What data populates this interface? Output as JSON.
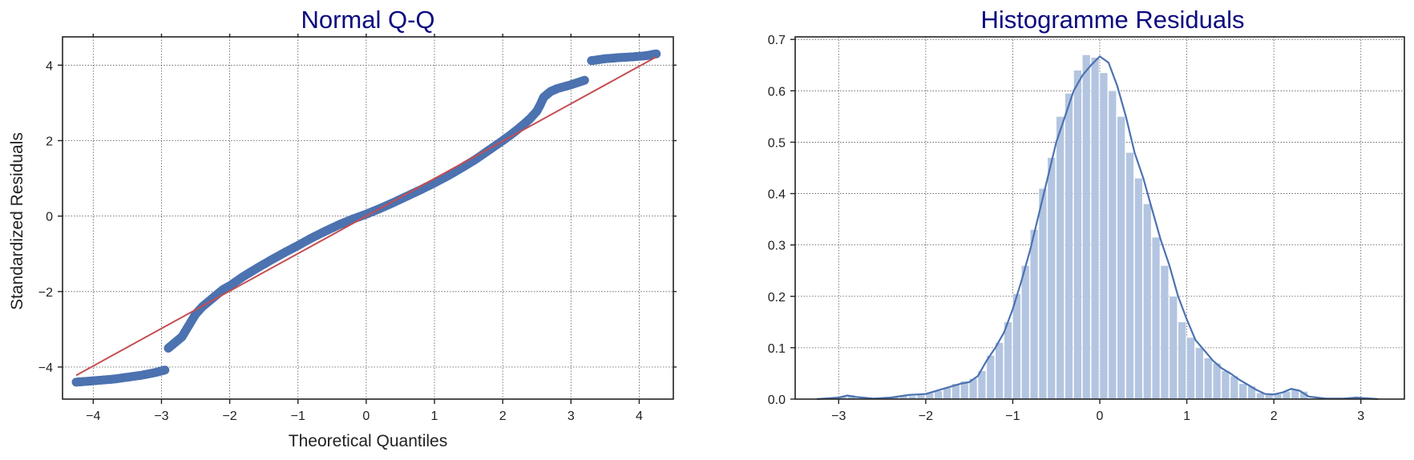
{
  "colors": {
    "points": "#4c72b0",
    "ref_line": "#c44e52",
    "bars": "#b3c5e0",
    "kde": "#4c72b0",
    "title": "#0a0a80"
  },
  "chart_data": [
    {
      "type": "scatter",
      "title": "Normal Q-Q",
      "xlabel": "Theoretical Quantiles",
      "ylabel": "Standardized Residuals",
      "xlim": [
        -4.45,
        4.5
      ],
      "ylim": [
        -4.85,
        4.75
      ],
      "xticks": [
        -4,
        -3,
        -2,
        -1,
        0,
        1,
        2,
        3,
        4
      ],
      "yticks": [
        -4,
        -2,
        0,
        2,
        4
      ],
      "xtick_labels": [
        "−4",
        "−3",
        "−2",
        "−1",
        "0",
        "1",
        "2",
        "3",
        "4"
      ],
      "ytick_labels": [
        "−4",
        "−2",
        "0",
        "2",
        "4"
      ],
      "grid": true,
      "reference_line": {
        "x": [
          -4.25,
          4.25
        ],
        "y": [
          -4.22,
          4.22
        ]
      },
      "series": [
        {
          "x": [
            -4.25,
            -4.1,
            -3.9,
            -3.7,
            -3.5,
            -3.3,
            -3.1,
            -2.95,
            -2.9,
            -2.8,
            -2.7,
            -2.6,
            -2.5,
            -2.4,
            -2.3,
            -2.2,
            -2.1,
            -2.0,
            -1.8,
            -1.6,
            -1.4,
            -1.2,
            -1.0,
            -0.8,
            -0.6,
            -0.4,
            -0.2,
            0.0,
            0.2,
            0.4,
            0.6,
            0.8,
            1.0,
            1.2,
            1.4,
            1.6,
            1.8,
            2.0,
            2.1,
            2.2,
            2.3,
            2.4,
            2.5,
            2.55,
            2.6,
            2.7,
            2.8,
            3.0,
            3.2,
            3.3,
            3.5,
            3.7,
            3.9,
            4.1,
            4.25
          ],
          "y": [
            -4.4,
            -4.38,
            -4.35,
            -4.32,
            -4.27,
            -4.22,
            -4.15,
            -4.08,
            -3.5,
            -3.35,
            -3.2,
            -2.9,
            -2.6,
            -2.4,
            -2.25,
            -2.1,
            -1.95,
            -1.85,
            -1.6,
            -1.38,
            -1.17,
            -0.97,
            -0.78,
            -0.58,
            -0.4,
            -0.23,
            -0.08,
            0.05,
            0.2,
            0.36,
            0.53,
            0.7,
            0.88,
            1.07,
            1.28,
            1.5,
            1.75,
            2.0,
            2.13,
            2.27,
            2.42,
            2.58,
            2.78,
            2.95,
            3.15,
            3.3,
            3.38,
            3.48,
            3.6,
            4.12,
            4.17,
            4.2,
            4.22,
            4.25,
            4.3
          ]
        }
      ]
    },
    {
      "type": "bar",
      "title": "Histogramme Residuals",
      "xlabel": "",
      "ylabel": "",
      "xlim": [
        -3.5,
        3.5
      ],
      "ylim": [
        0,
        0.705
      ],
      "xticks": [
        -3,
        -2,
        -1,
        0,
        1,
        2,
        3
      ],
      "yticks": [
        0.0,
        0.1,
        0.2,
        0.3,
        0.4,
        0.5,
        0.6,
        0.7
      ],
      "xtick_labels": [
        "−3",
        "−2",
        "−1",
        "0",
        "1",
        "2",
        "3"
      ],
      "ytick_labels": [
        "0.0",
        "0.1",
        "0.2",
        "0.3",
        "0.4",
        "0.5",
        "0.6",
        "0.7"
      ],
      "grid": true,
      "bin_width": 0.1,
      "bin_centers": [
        -3.25,
        -3.15,
        -3.05,
        -2.95,
        -2.85,
        -2.75,
        -2.65,
        -2.55,
        -2.45,
        -2.35,
        -2.25,
        -2.15,
        -2.05,
        -1.95,
        -1.85,
        -1.75,
        -1.65,
        -1.55,
        -1.45,
        -1.35,
        -1.25,
        -1.15,
        -1.05,
        -0.95,
        -0.85,
        -0.75,
        -0.65,
        -0.55,
        -0.45,
        -0.35,
        -0.25,
        -0.15,
        -0.05,
        0.05,
        0.15,
        0.25,
        0.35,
        0.45,
        0.55,
        0.65,
        0.75,
        0.85,
        0.95,
        1.05,
        1.15,
        1.25,
        1.35,
        1.45,
        1.55,
        1.65,
        1.75,
        1.85,
        1.95,
        2.05,
        2.15,
        2.25,
        2.35,
        2.45,
        2.55,
        2.65,
        2.75,
        2.85,
        2.95,
        3.05,
        3.15
      ],
      "values": [
        0.0,
        0.0,
        0.0,
        0.005,
        0.008,
        0.0,
        0.0,
        0.0,
        0.002,
        0.004,
        0.006,
        0.006,
        0.008,
        0.012,
        0.016,
        0.022,
        0.03,
        0.035,
        0.04,
        0.055,
        0.085,
        0.11,
        0.15,
        0.205,
        0.26,
        0.33,
        0.41,
        0.47,
        0.55,
        0.595,
        0.64,
        0.67,
        0.665,
        0.635,
        0.6,
        0.55,
        0.48,
        0.43,
        0.38,
        0.315,
        0.26,
        0.2,
        0.15,
        0.12,
        0.1,
        0.08,
        0.07,
        0.055,
        0.045,
        0.03,
        0.025,
        0.012,
        0.01,
        0.01,
        0.015,
        0.02,
        0.015,
        0.0,
        0.0,
        0.0,
        0.0,
        0.0,
        0.002,
        0.0,
        0.0
      ],
      "kde": {
        "x": [
          -3.25,
          -3.0,
          -2.9,
          -2.8,
          -2.6,
          -2.4,
          -2.2,
          -2.0,
          -1.8,
          -1.6,
          -1.5,
          -1.4,
          -1.3,
          -1.2,
          -1.1,
          -1.0,
          -0.9,
          -0.8,
          -0.7,
          -0.6,
          -0.5,
          -0.4,
          -0.3,
          -0.2,
          -0.1,
          0.0,
          0.1,
          0.2,
          0.3,
          0.4,
          0.5,
          0.6,
          0.7,
          0.8,
          0.9,
          1.0,
          1.1,
          1.2,
          1.3,
          1.4,
          1.5,
          1.6,
          1.7,
          1.8,
          1.9,
          2.0,
          2.1,
          2.2,
          2.3,
          2.4,
          2.6,
          2.8,
          2.95,
          3.2
        ],
        "y": [
          0.0,
          0.003,
          0.007,
          0.004,
          0.001,
          0.003,
          0.008,
          0.01,
          0.02,
          0.03,
          0.033,
          0.045,
          0.075,
          0.1,
          0.13,
          0.175,
          0.23,
          0.29,
          0.36,
          0.43,
          0.5,
          0.55,
          0.6,
          0.63,
          0.65,
          0.667,
          0.655,
          0.61,
          0.55,
          0.48,
          0.43,
          0.37,
          0.31,
          0.26,
          0.2,
          0.155,
          0.115,
          0.095,
          0.075,
          0.06,
          0.05,
          0.038,
          0.028,
          0.018,
          0.01,
          0.009,
          0.013,
          0.02,
          0.016,
          0.005,
          0.001,
          0.001,
          0.003,
          0.0
        ]
      }
    }
  ]
}
